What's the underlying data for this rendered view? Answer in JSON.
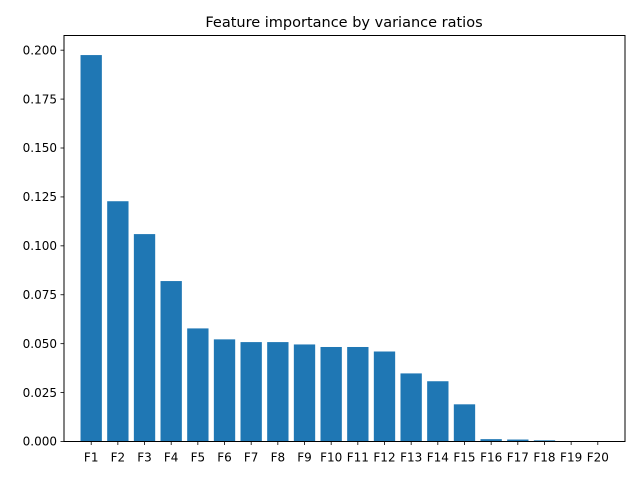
{
  "chart_data": {
    "type": "bar",
    "title": "Feature importance by variance ratios",
    "xlabel": "",
    "ylabel": "",
    "categories": [
      "F1",
      "F2",
      "F3",
      "F4",
      "F5",
      "F6",
      "F7",
      "F8",
      "F9",
      "F10",
      "F11",
      "F12",
      "F13",
      "F14",
      "F15",
      "F16",
      "F17",
      "F18",
      "F19",
      "F20"
    ],
    "values": [
      0.1975,
      0.1228,
      0.106,
      0.082,
      0.0578,
      0.0522,
      0.0508,
      0.0508,
      0.0496,
      0.0483,
      0.0483,
      0.046,
      0.0348,
      0.0308,
      0.019,
      0.0012,
      0.001,
      0.0006,
      0.0001,
      0.0001
    ],
    "ylim": [
      0,
      0.2075
    ],
    "yticks": [
      "0.000",
      "0.025",
      "0.050",
      "0.075",
      "0.100",
      "0.125",
      "0.150",
      "0.175",
      "0.200"
    ],
    "bar_color": "#1f77b4",
    "grid": false,
    "legend": "none"
  }
}
